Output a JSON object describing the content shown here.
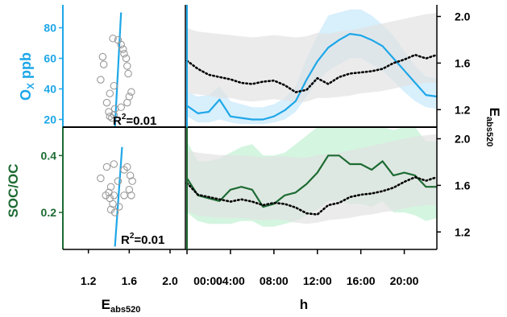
{
  "colors": {
    "ox": "#1ea7e8",
    "ox_fill": "#cbe9fb",
    "soc": "#1d6b33",
    "soc_fill": "#c6f2d6",
    "eabs": "#000000",
    "eabs_fill": "#e3e3e3",
    "scatter": "#9a9a9a"
  },
  "axes": {
    "ox_ylabel_main": "O",
    "ox_ylabel_sub": "X",
    "ox_ylabel_unit": " ppb",
    "soc_ylabel": "SOC/OC",
    "eabs_label_main": "E",
    "eabs_label_sub": "abs520",
    "xlabel_h": "h"
  },
  "annotations": {
    "r2_ox": "R",
    "r2_ox_sup": "2",
    "r2_ox_val": "=0.01",
    "r2_soc": "R",
    "r2_soc_sup": "2",
    "r2_soc_val": "=0.01"
  },
  "chart_data": [
    {
      "id": "scatter_ox",
      "type": "scatter",
      "xlabel": "Eabs520",
      "ylabel": "OX ppb",
      "xlim": [
        0.95,
        2.15
      ],
      "ylim": [
        15,
        95
      ],
      "xticks": [
        "1.2",
        "1.6",
        "2.0"
      ],
      "yticks": [
        "20",
        "40",
        "60",
        "80"
      ],
      "points": [
        [
          1.44,
          73
        ],
        [
          1.49,
          72
        ],
        [
          1.52,
          69
        ],
        [
          1.54,
          66
        ],
        [
          1.55,
          63
        ],
        [
          1.34,
          61
        ],
        [
          1.57,
          60
        ],
        [
          1.35,
          56
        ],
        [
          1.58,
          55
        ],
        [
          1.59,
          50
        ],
        [
          1.32,
          46
        ],
        [
          1.45,
          42
        ],
        [
          1.62,
          38
        ],
        [
          1.41,
          37
        ],
        [
          1.6,
          35
        ],
        [
          1.58,
          31
        ],
        [
          1.38,
          31
        ],
        [
          1.52,
          28
        ],
        [
          1.46,
          27
        ],
        [
          1.4,
          25
        ],
        [
          1.45,
          23
        ],
        [
          1.41,
          22
        ],
        [
          1.43,
          21
        ]
      ],
      "fit_line": {
        "x": [
          1.46,
          1.52
        ],
        "y": [
          15,
          90
        ]
      },
      "annotation": "R2=0.01"
    },
    {
      "id": "scatter_soc",
      "type": "scatter",
      "xlabel": "Eabs520",
      "ylabel": "SOC/OC",
      "xlim": [
        0.95,
        2.15
      ],
      "ylim": [
        0.07,
        0.5
      ],
      "xticks": [
        "1.2",
        "1.6",
        "2.0"
      ],
      "yticks": [
        "0.2",
        "0.4"
      ],
      "points": [
        [
          1.45,
          0.37
        ],
        [
          1.38,
          0.36
        ],
        [
          1.55,
          0.35
        ],
        [
          1.58,
          0.36
        ],
        [
          1.61,
          0.33
        ],
        [
          1.32,
          0.32
        ],
        [
          1.49,
          0.31
        ],
        [
          1.63,
          0.31
        ],
        [
          1.42,
          0.29
        ],
        [
          1.6,
          0.28
        ],
        [
          1.4,
          0.27
        ],
        [
          1.37,
          0.26
        ],
        [
          1.45,
          0.26
        ],
        [
          1.55,
          0.26
        ],
        [
          1.62,
          0.26
        ],
        [
          1.41,
          0.25
        ],
        [
          1.44,
          0.23
        ],
        [
          1.5,
          0.22
        ],
        [
          1.42,
          0.21
        ],
        [
          1.46,
          0.2
        ]
      ],
      "fit_line": {
        "x": [
          1.46,
          1.53
        ],
        "y": [
          0.08,
          0.43
        ]
      },
      "annotation": "R2=0.01"
    },
    {
      "id": "diurnal_ox",
      "type": "line",
      "xlabel": "h",
      "ylabel_left": "OX ppb",
      "ylabel_right": "Eabs520",
      "xlim": [
        0,
        23
      ],
      "ylim_left": [
        15,
        95
      ],
      "ylim_right": [
        1.05,
        2.1
      ],
      "x": [
        0,
        1,
        2,
        3,
        4,
        5,
        6,
        7,
        8,
        9,
        10,
        11,
        12,
        13,
        14,
        15,
        16,
        17,
        18,
        19,
        20,
        21,
        22,
        23
      ],
      "series": [
        {
          "name": "OX",
          "axis": "left",
          "style": "solid",
          "values": [
            29,
            24,
            25,
            33,
            22,
            21,
            20,
            20,
            22,
            26,
            32,
            46,
            58,
            67,
            72,
            76,
            75,
            72,
            68,
            60,
            52,
            44,
            36,
            35
          ],
          "band_low": [
            22,
            18,
            18,
            20,
            18,
            17,
            17,
            17,
            18,
            20,
            25,
            35,
            45,
            52,
            56,
            60,
            60,
            56,
            52,
            45,
            38,
            32,
            28,
            27
          ],
          "band_high": [
            38,
            35,
            36,
            42,
            32,
            30,
            28,
            28,
            30,
            34,
            42,
            60,
            75,
            88,
            90,
            92,
            92,
            88,
            82,
            75,
            65,
            55,
            48,
            47
          ]
        },
        {
          "name": "Eabs520",
          "axis": "right",
          "style": "dotted",
          "values": [
            1.62,
            1.55,
            1.5,
            1.48,
            1.46,
            1.43,
            1.42,
            1.44,
            1.45,
            1.41,
            1.35,
            1.37,
            1.47,
            1.42,
            1.48,
            1.51,
            1.52,
            1.53,
            1.55,
            1.6,
            1.63,
            1.67,
            1.64,
            1.67
          ],
          "band_low": [
            1.34,
            1.33,
            1.32,
            1.3,
            1.3,
            1.28,
            1.27,
            1.28,
            1.29,
            1.28,
            1.26,
            1.27,
            1.3,
            1.3,
            1.31,
            1.32,
            1.34,
            1.35,
            1.36,
            1.38,
            1.4,
            1.42,
            1.43,
            1.43
          ],
          "band_high": [
            1.9,
            1.87,
            1.86,
            1.85,
            1.84,
            1.83,
            1.82,
            1.83,
            1.84,
            1.83,
            1.82,
            1.83,
            1.86,
            1.85,
            1.87,
            1.88,
            1.9,
            1.92,
            1.94,
            1.96,
            1.98,
            2.0,
            2.02,
            2.03
          ]
        }
      ],
      "xticks": [
        "00:00",
        "04:00",
        "08:00",
        "12:00",
        "16:00",
        "20:00"
      ],
      "yticks_right": [
        "1.2",
        "1.6",
        "2.0"
      ]
    },
    {
      "id": "diurnal_soc",
      "type": "line",
      "xlabel": "h",
      "ylabel_left": "SOC/OC",
      "ylabel_right": "Eabs520",
      "xlim": [
        0,
        23
      ],
      "ylim_left": [
        0.07,
        0.5
      ],
      "ylim_right": [
        1.05,
        2.1
      ],
      "x": [
        0,
        1,
        2,
        3,
        4,
        5,
        6,
        7,
        8,
        9,
        10,
        11,
        12,
        13,
        14,
        15,
        16,
        17,
        18,
        19,
        20,
        21,
        22,
        23
      ],
      "series": [
        {
          "name": "SOC/OC",
          "axis": "left",
          "style": "solid",
          "values": [
            0.32,
            0.26,
            0.25,
            0.24,
            0.28,
            0.29,
            0.28,
            0.22,
            0.23,
            0.26,
            0.27,
            0.3,
            0.34,
            0.4,
            0.4,
            0.37,
            0.37,
            0.35,
            0.38,
            0.33,
            0.34,
            0.33,
            0.29,
            0.29
          ],
          "band_low": [
            0.2,
            0.17,
            0.16,
            0.16,
            0.16,
            0.17,
            0.17,
            0.15,
            0.15,
            0.16,
            0.17,
            0.19,
            0.21,
            0.24,
            0.24,
            0.23,
            0.23,
            0.22,
            0.24,
            0.2,
            0.2,
            0.19,
            0.17,
            0.18
          ],
          "band_high": [
            0.45,
            0.38,
            0.38,
            0.39,
            0.41,
            0.43,
            0.44,
            0.4,
            0.4,
            0.41,
            0.44,
            0.47,
            0.5,
            0.52,
            0.52,
            0.52,
            0.52,
            0.5,
            0.52,
            0.49,
            0.5,
            0.5,
            0.45,
            0.45
          ]
        },
        {
          "name": "Eabs520",
          "axis": "right",
          "style": "dotted",
          "values": [
            1.62,
            1.52,
            1.5,
            1.48,
            1.46,
            1.48,
            1.46,
            1.43,
            1.45,
            1.44,
            1.41,
            1.36,
            1.35,
            1.43,
            1.45,
            1.5,
            1.52,
            1.53,
            1.55,
            1.58,
            1.63,
            1.67,
            1.64,
            1.67
          ],
          "band_low": [
            1.38,
            1.34,
            1.33,
            1.32,
            1.32,
            1.32,
            1.31,
            1.3,
            1.31,
            1.3,
            1.28,
            1.27,
            1.28,
            1.3,
            1.31,
            1.32,
            1.34,
            1.35,
            1.37,
            1.38,
            1.4,
            1.42,
            1.43,
            1.43
          ],
          "band_high": [
            1.9,
            1.88,
            1.87,
            1.86,
            1.86,
            1.86,
            1.85,
            1.84,
            1.85,
            1.85,
            1.84,
            1.84,
            1.86,
            1.87,
            1.88,
            1.9,
            1.92,
            1.94,
            1.96,
            1.98,
            2.0,
            2.02,
            2.03,
            2.04
          ]
        }
      ],
      "xticks": [
        "00:00",
        "04:00",
        "08:00",
        "12:00",
        "16:00",
        "20:00"
      ],
      "yticks_right": [
        "1.2",
        "1.6",
        "2.0"
      ]
    }
  ]
}
